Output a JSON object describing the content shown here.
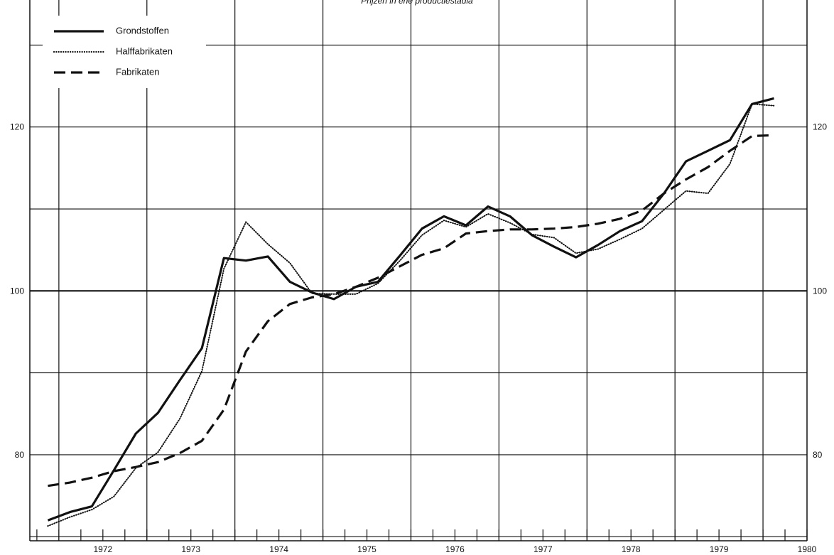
{
  "chart_data": {
    "type": "line",
    "title": "Prijzen in ehe productiestadia",
    "xlabel": "",
    "ylabel": "",
    "x_tick_labels": [
      "1972",
      "1973",
      "1974",
      "1975",
      "1976",
      "1977",
      "1978",
      "1979",
      "1980"
    ],
    "y_tick_labels": [
      "80",
      "100",
      "120"
    ],
    "xlim": [
      1971.67,
      1980.5
    ],
    "ylim": [
      69.5,
      135.5
    ],
    "grid": true,
    "legend_position": "top-left",
    "x": [
      1971.875,
      1972.125,
      1972.375,
      1972.625,
      1972.875,
      1973.125,
      1973.375,
      1973.625,
      1973.875,
      1974.125,
      1974.375,
      1974.625,
      1974.875,
      1975.125,
      1975.375,
      1975.625,
      1975.875,
      1976.125,
      1976.375,
      1976.625,
      1976.875,
      1977.125,
      1977.375,
      1977.625,
      1977.875,
      1978.125,
      1978.375,
      1978.625,
      1978.875,
      1979.125,
      1979.375,
      1979.625,
      1979.875,
      1980.125
    ],
    "series": [
      {
        "name": "Grondstoffen",
        "style": "solid",
        "values": [
          72,
          73,
          73.7,
          78.1,
          82.6,
          85.1,
          89.1,
          93,
          104,
          103.7,
          104.2,
          101.1,
          99.8,
          99,
          100.5,
          101.1,
          104.3,
          107.6,
          109.1,
          108,
          110.3,
          109.1,
          106.8,
          105.4,
          104.1,
          105.6,
          107.3,
          108.5,
          111.9,
          115.8,
          117.1,
          118.4,
          122.8,
          123.5
        ]
      },
      {
        "name": "Halffabrikaten",
        "style": "dotted",
        "values": [
          71.3,
          72.4,
          73.3,
          74.9,
          78.4,
          80.3,
          84.4,
          90.2,
          102.7,
          108.4,
          105.7,
          103.4,
          99.7,
          99.6,
          99.6,
          100.9,
          103.7,
          106.8,
          108.6,
          107.8,
          109.4,
          108.3,
          106.9,
          106.5,
          104.6,
          105.1,
          106.3,
          107.6,
          109.9,
          112.2,
          111.9,
          115.5,
          122.8,
          122.6
        ]
      },
      {
        "name": "Fabrikaten",
        "style": "dashed",
        "values": [
          76.2,
          76.6,
          77.2,
          78,
          78.5,
          79.1,
          80.2,
          81.7,
          85.5,
          92.6,
          96.3,
          98.4,
          99.2,
          99.6,
          100.5,
          101.6,
          103,
          104.4,
          105.2,
          107,
          107.3,
          107.5,
          107.5,
          107.6,
          107.8,
          108.2,
          108.8,
          109.8,
          111.9,
          113.6,
          115.1,
          117.1,
          118.9,
          119
        ]
      }
    ]
  },
  "legend": {
    "items": [
      {
        "label": "Grondstoffen",
        "style": "solid"
      },
      {
        "label": "Halffabrikaten",
        "style": "dotted"
      },
      {
        "label": "Fabrikaten",
        "style": "dashed"
      }
    ]
  },
  "colors": {
    "ink": "#111111",
    "grid": "#111111",
    "background": "#ffffff"
  }
}
